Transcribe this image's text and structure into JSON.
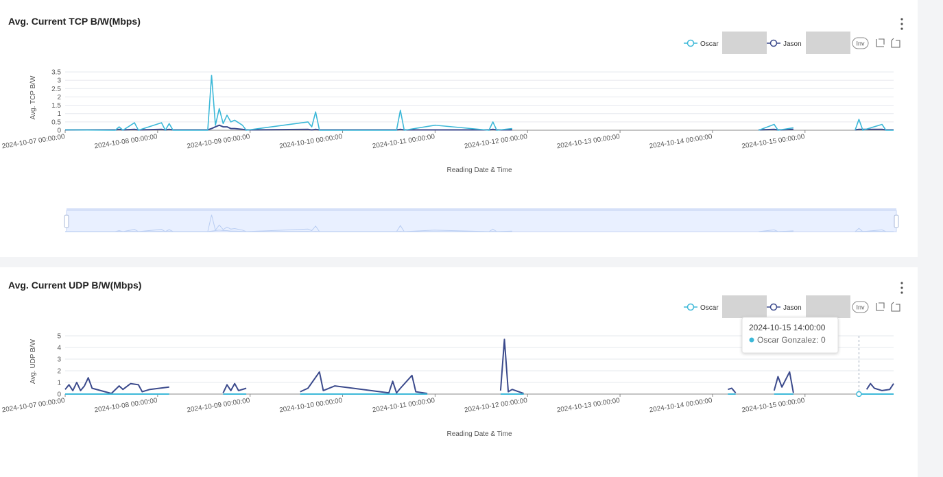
{
  "toolbar": {
    "button": "Inv"
  },
  "chart_data": [
    {
      "type": "line",
      "title": "Avg. Current TCP B/W(Mbps)",
      "y_label": "Avg. TCP B/W",
      "x_label": "Reading Date & Time",
      "legend": "top-right",
      "grid": true,
      "zoom_slider": true,
      "xlim": [
        "2024-10-07 00:00:00",
        "2024-10-15 23:00:00"
      ],
      "xticks": [
        "2024-10-07 00:00:00",
        "2024-10-08 00:00:00",
        "2024-10-09 00:00:00",
        "2024-10-10 00:00:00",
        "2024-10-11 00:00:00",
        "2024-10-12 00:00:00",
        "2024-10-13 00:00:00",
        "2024-10-14 00:00:00",
        "2024-10-15 00:00:00"
      ],
      "ylim": [
        0,
        3.5
      ],
      "yticks": [
        0,
        0.5,
        1,
        1.5,
        2,
        2.5,
        3,
        3.5
      ],
      "x": [
        "2024-10-07 00:00:00",
        "2024-10-07 13:00:00",
        "2024-10-07 14:00:00",
        "2024-10-07 15:00:00",
        "2024-10-07 18:00:00",
        "2024-10-07 19:00:00",
        "2024-10-08 01:00:00",
        "2024-10-08 02:00:00",
        "2024-10-08 03:00:00",
        "2024-10-08 04:00:00",
        "2024-10-08 13:00:00",
        "2024-10-08 14:00:00",
        "2024-10-08 15:00:00",
        "2024-10-08 16:00:00",
        "2024-10-08 17:00:00",
        "2024-10-08 18:00:00",
        "2024-10-08 19:00:00",
        "2024-10-08 20:00:00",
        "2024-10-08 22:00:00",
        "2024-10-08 23:00:00",
        "2024-10-09 15:00:00",
        "2024-10-09 16:00:00",
        "2024-10-09 17:00:00",
        "2024-10-09 18:00:00",
        "2024-10-10 14:00:00",
        "2024-10-10 15:00:00",
        "2024-10-10 16:00:00",
        "2024-10-11 00:00:00",
        "2024-10-11 14:00:00",
        "2024-10-11 15:00:00",
        "2024-10-11 16:00:00",
        "2024-10-11 20:00:00",
        "2024-10-12 00:00:00",
        "2024-10-14 12:00:00",
        "2024-10-14 16:00:00",
        "2024-10-14 17:00:00",
        "2024-10-14 21:00:00",
        "2024-10-14 22:00:00",
        "2024-10-15 13:00:00",
        "2024-10-15 14:00:00",
        "2024-10-15 15:00:00",
        "2024-10-15 20:00:00",
        "2024-10-15 21:00:00",
        "2024-10-15 23:00:00"
      ],
      "series": [
        {
          "name": "Oscar",
          "color": "#3cb8d8",
          "values": [
            0.02,
            0,
            0.2,
            0,
            0.45,
            0,
            0.45,
            0,
            0.4,
            0,
            0,
            3.3,
            0.3,
            1.3,
            0.4,
            0.9,
            0.5,
            0.6,
            0.3,
            0,
            0.5,
            0.2,
            1.1,
            0,
            0,
            1.2,
            0,
            0.3,
            0,
            0.5,
            0,
            0.1,
            null,
            0,
            0.35,
            0,
            0.15,
            null,
            0,
            0.65,
            0,
            0.35,
            0,
            0
          ]
        },
        {
          "name": "Jason",
          "color": "#3b4a8c",
          "values": [
            0.02,
            0.02,
            0.05,
            0.02,
            0.05,
            0.02,
            0.05,
            0.02,
            0.05,
            0.02,
            0.02,
            0.1,
            0.2,
            0.3,
            0.2,
            0.2,
            0.1,
            0.1,
            0.05,
            0.02,
            0.05,
            0.02,
            0.05,
            0.02,
            0.02,
            0.05,
            0.02,
            0.02,
            0.02,
            0.05,
            0.02,
            0.02,
            null,
            0.02,
            0.05,
            0.02,
            0.05,
            null,
            0.02,
            0.05,
            0.05,
            0.05,
            0.02,
            0.02
          ]
        }
      ]
    },
    {
      "type": "line",
      "title": "Avg. Current UDP B/W(Mbps)",
      "y_label": "Avg. UDP B/W",
      "x_label": "Reading Date & Time",
      "legend": "top-right",
      "grid": true,
      "zoom_slider": false,
      "xlim": [
        "2024-10-07 00:00:00",
        "2024-10-15 23:00:00"
      ],
      "xticks": [
        "2024-10-07 00:00:00",
        "2024-10-08 00:00:00",
        "2024-10-09 00:00:00",
        "2024-10-10 00:00:00",
        "2024-10-11 00:00:00",
        "2024-10-12 00:00:00",
        "2024-10-13 00:00:00",
        "2024-10-14 00:00:00",
        "2024-10-15 00:00:00"
      ],
      "ylim": [
        0,
        5
      ],
      "yticks": [
        0,
        1,
        2,
        3,
        4,
        5
      ],
      "x": [
        "2024-10-07 00:00:00",
        "2024-10-07 01:00:00",
        "2024-10-07 02:00:00",
        "2024-10-07 03:00:00",
        "2024-10-07 04:00:00",
        "2024-10-07 05:00:00",
        "2024-10-07 06:00:00",
        "2024-10-07 07:00:00",
        "2024-10-07 12:00:00",
        "2024-10-07 14:00:00",
        "2024-10-07 15:00:00",
        "2024-10-07 17:00:00",
        "2024-10-07 19:00:00",
        "2024-10-07 20:00:00",
        "2024-10-07 22:00:00",
        "2024-10-08 03:00:00",
        "2024-10-08 04:00:00",
        "2024-10-08 17:00:00",
        "2024-10-08 18:00:00",
        "2024-10-08 19:00:00",
        "2024-10-08 20:00:00",
        "2024-10-08 21:00:00",
        "2024-10-08 23:00:00",
        "2024-10-09 00:00:00",
        "2024-10-09 13:00:00",
        "2024-10-09 15:00:00",
        "2024-10-09 18:00:00",
        "2024-10-09 19:00:00",
        "2024-10-09 22:00:00",
        "2024-10-10 12:00:00",
        "2024-10-10 13:00:00",
        "2024-10-10 14:00:00",
        "2024-10-10 15:00:00",
        "2024-10-10 18:00:00",
        "2024-10-10 19:00:00",
        "2024-10-10 22:00:00",
        "2024-10-11 00:00:00",
        "2024-10-11 17:00:00",
        "2024-10-11 18:00:00",
        "2024-10-11 19:00:00",
        "2024-10-11 20:00:00",
        "2024-10-11 23:00:00",
        "2024-10-12 00:00:00",
        "2024-10-14 04:00:00",
        "2024-10-14 05:00:00",
        "2024-10-14 06:00:00",
        "2024-10-14 07:00:00",
        "2024-10-14 16:00:00",
        "2024-10-14 17:00:00",
        "2024-10-14 18:00:00",
        "2024-10-14 20:00:00",
        "2024-10-14 21:00:00",
        "2024-10-14 22:00:00",
        "2024-10-15 14:00:00",
        "2024-10-15 16:00:00",
        "2024-10-15 17:00:00",
        "2024-10-15 18:00:00",
        "2024-10-15 20:00:00",
        "2024-10-15 22:00:00",
        "2024-10-15 23:00:00"
      ],
      "series": [
        {
          "name": "Oscar",
          "color": "#3cb8d8",
          "values": [
            0,
            0,
            0,
            0,
            0,
            0,
            0,
            0,
            0,
            0,
            0,
            0,
            0,
            0,
            0,
            0,
            null,
            0,
            0,
            0,
            0,
            0,
            0,
            null,
            0,
            0,
            0,
            0,
            0,
            0,
            0,
            0,
            0,
            0,
            0,
            0,
            null,
            0,
            0,
            0,
            0,
            0,
            null,
            0,
            0,
            0,
            null,
            0,
            0,
            0,
            0,
            0,
            null,
            0,
            0,
            0,
            0,
            0,
            0,
            0
          ]
        },
        {
          "name": "Jason",
          "color": "#3b4a8c",
          "values": [
            0.4,
            0.8,
            0.3,
            1.0,
            0.3,
            0.7,
            1.4,
            0.5,
            0.05,
            0.7,
            0.4,
            0.9,
            0.8,
            0.2,
            0.4,
            0.6,
            null,
            0.1,
            0.8,
            0.3,
            0.9,
            0.3,
            0.5,
            null,
            0.2,
            0.5,
            1.9,
            0.3,
            0.7,
            0.1,
            1.1,
            0.1,
            0.5,
            1.6,
            0.2,
            0.05,
            null,
            0.3,
            4.7,
            0.2,
            0.4,
            0.05,
            null,
            0.4,
            0.5,
            0.1,
            null,
            0.3,
            1.5,
            0.6,
            1.9,
            0.1,
            null,
            null,
            0.4,
            0.9,
            0.5,
            0.3,
            0.4,
            0.9
          ]
        }
      ],
      "tooltip": {
        "title": "2024-10-15 14:00:00",
        "series": "Oscar Gonzalez",
        "value": 0,
        "point": 53
      }
    }
  ]
}
